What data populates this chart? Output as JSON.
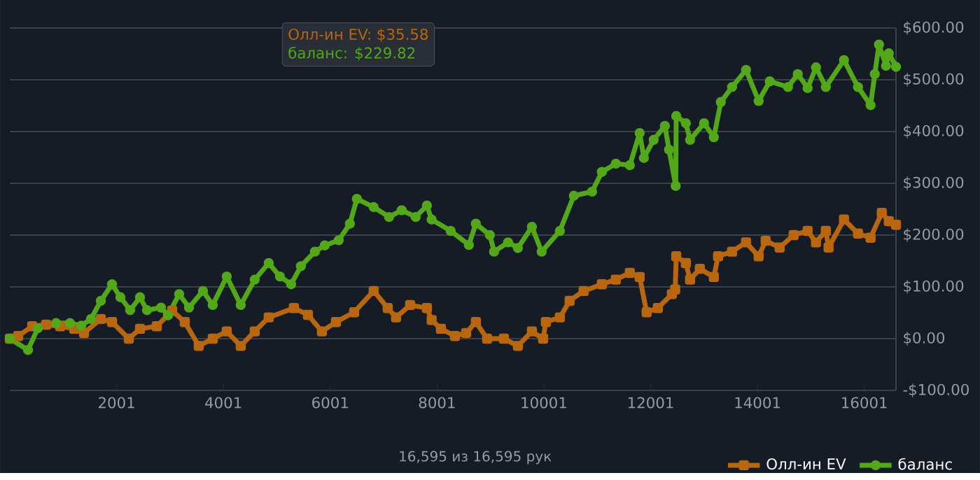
{
  "chart_data": {
    "type": "line",
    "xlim": [
      1,
      16595
    ],
    "xticks": [
      2001,
      4001,
      6001,
      8001,
      10001,
      12001,
      14001,
      16001
    ],
    "ylim": [
      -100,
      600
    ],
    "yticks": [
      {
        "value": -100,
        "label": "-$100.00"
      },
      {
        "value": 0,
        "label": "$0.00"
      },
      {
        "value": 100,
        "label": "$100.00"
      },
      {
        "value": 200,
        "label": "$200.00"
      },
      {
        "value": 300,
        "label": "$300.00"
      },
      {
        "value": 400,
        "label": "$400.00"
      },
      {
        "value": 500,
        "label": "$500.00"
      },
      {
        "value": 600,
        "label": "$600.00"
      }
    ],
    "grid": "y",
    "legend": "bottom right",
    "series": [
      {
        "name": "Олл-ин EV",
        "color": "#b8660f",
        "marker": "square",
        "x": [
          1,
          158,
          420,
          682,
          944,
          1207,
          1390,
          1705,
          1915,
          2229,
          2439,
          2753,
          3041,
          3277,
          3539,
          3801,
          4063,
          4325,
          4587,
          4849,
          5321,
          5583,
          5845,
          6108,
          6448,
          6815,
          7077,
          7234,
          7497,
          7811,
          7900,
          8074,
          8336,
          8545,
          8728,
          8938,
          9253,
          9515,
          9777,
          9987,
          10039,
          10301,
          10484,
          10746,
          11087,
          11349,
          11611,
          11795,
          11926,
          12136,
          12398,
          12460,
          12480,
          12660,
          12739,
          12922,
          13184,
          13263,
          13525,
          13787,
          14023,
          14154,
          14416,
          14678,
          14940,
          15097,
          15281,
          15333,
          15621,
          15883,
          16119,
          16329,
          16460,
          16595
        ],
        "values": [
          0,
          5,
          24,
          27,
          24,
          19,
          11,
          38,
          32,
          0,
          19,
          24,
          54,
          32,
          -14,
          0,
          14,
          -14,
          14,
          41,
          59,
          46,
          14,
          32,
          51,
          92,
          59,
          41,
          65,
          59,
          36,
          19,
          5,
          11,
          32,
          0,
          0,
          -14,
          14,
          0,
          32,
          41,
          73,
          92,
          105,
          114,
          127,
          119,
          51,
          59,
          86,
          95,
          159,
          146,
          114,
          135,
          119,
          159,
          168,
          186,
          159,
          189,
          176,
          200,
          208,
          186,
          208,
          176,
          230,
          203,
          195,
          243,
          227,
          220
        ]
      },
      {
        "name": "баланс",
        "color": "#52a818",
        "marker": "circle",
        "x": [
          1,
          342,
          525,
          866,
          1128,
          1338,
          1521,
          1705,
          1915,
          2072,
          2255,
          2439,
          2570,
          2832,
          2963,
          3172,
          3356,
          3618,
          3801,
          4063,
          4325,
          4587,
          4849,
          5059,
          5268,
          5452,
          5714,
          5898,
          6160,
          6369,
          6500,
          6815,
          7103,
          7339,
          7601,
          7811,
          7900,
          8257,
          8597,
          8728,
          8991,
          9069,
          9331,
          9515,
          9777,
          9960,
          10301,
          10563,
          10904,
          11087,
          11349,
          11611,
          11795,
          11874,
          12057,
          12267,
          12345,
          12470,
          12480,
          12660,
          12739,
          13001,
          13184,
          13315,
          13525,
          13787,
          14023,
          14232,
          14573,
          14756,
          14940,
          15097,
          15281,
          15621,
          15883,
          16119,
          16198,
          16277,
          16408,
          16460,
          16595
        ],
        "values": [
          0,
          -22,
          20,
          30,
          30,
          25,
          38,
          73,
          105,
          80,
          55,
          80,
          55,
          60,
          45,
          86,
          60,
          92,
          65,
          120,
          65,
          114,
          146,
          120,
          105,
          140,
          168,
          180,
          190,
          222,
          270,
          254,
          235,
          248,
          235,
          257,
          230,
          208,
          181,
          222,
          200,
          168,
          186,
          175,
          216,
          168,
          208,
          276,
          284,
          322,
          338,
          335,
          397,
          349,
          384,
          411,
          365,
          295,
          430,
          416,
          384,
          416,
          389,
          457,
          486,
          519,
          459,
          497,
          486,
          511,
          484,
          524,
          486,
          538,
          486,
          451,
          511,
          568,
          527,
          551,
          525
        ]
      }
    ],
    "annotations": [
      "Олл-ин EV: $35.58",
      "баланс: $229.82",
      "16,595 из 16,595 рук"
    ]
  }
}
